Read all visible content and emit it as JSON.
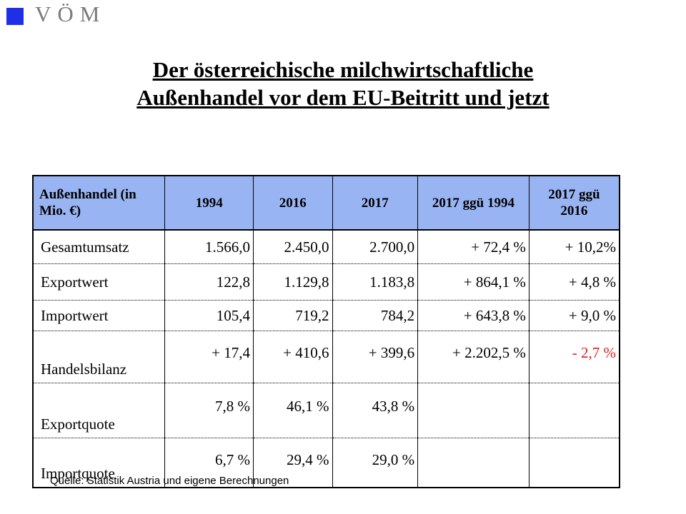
{
  "logo": {
    "text": "VÖM",
    "color": "#1f2fe8"
  },
  "title": {
    "line1": "Der österreichische milchwirtschaftliche",
    "line2": "Außenhandel vor dem EU-Beitritt und jetzt"
  },
  "table": {
    "headers": [
      "Außenhandel (in Mio. €)",
      "1994",
      "2016",
      "2017",
      "2017 ggü 1994",
      "2017 ggü 2016"
    ],
    "header_bg": "#99b4f2",
    "rows": [
      [
        "Gesamtumsatz",
        "1.566,0",
        "2.450,0",
        "2.700,0",
        "+ 72,4 %",
        "+ 10,2%"
      ],
      [
        "Exportwert",
        "122,8",
        "1.129,8",
        "1.183,8",
        "+ 864,1 %",
        "+ 4,8 %"
      ],
      [
        "Importwert",
        "105,4",
        "719,2",
        "784,2",
        "+ 643,8 %",
        "+ 9,0 %"
      ],
      [
        "Handelsbilanz",
        "+ 17,4",
        "+ 410,6",
        "+ 399,6",
        "+ 2.202,5 %",
        "- 2,7 %"
      ],
      [
        "Exportquote",
        "7,8 %",
        "46,1 %",
        "43,8 %",
        "",
        ""
      ],
      [
        "Importquote",
        "6,7 %",
        "29,4 %",
        "29,0 %",
        "",
        ""
      ]
    ],
    "negative_color": "#e11b1b"
  },
  "source": "Quelle: Statistik Austria und eigene Berechnungen"
}
